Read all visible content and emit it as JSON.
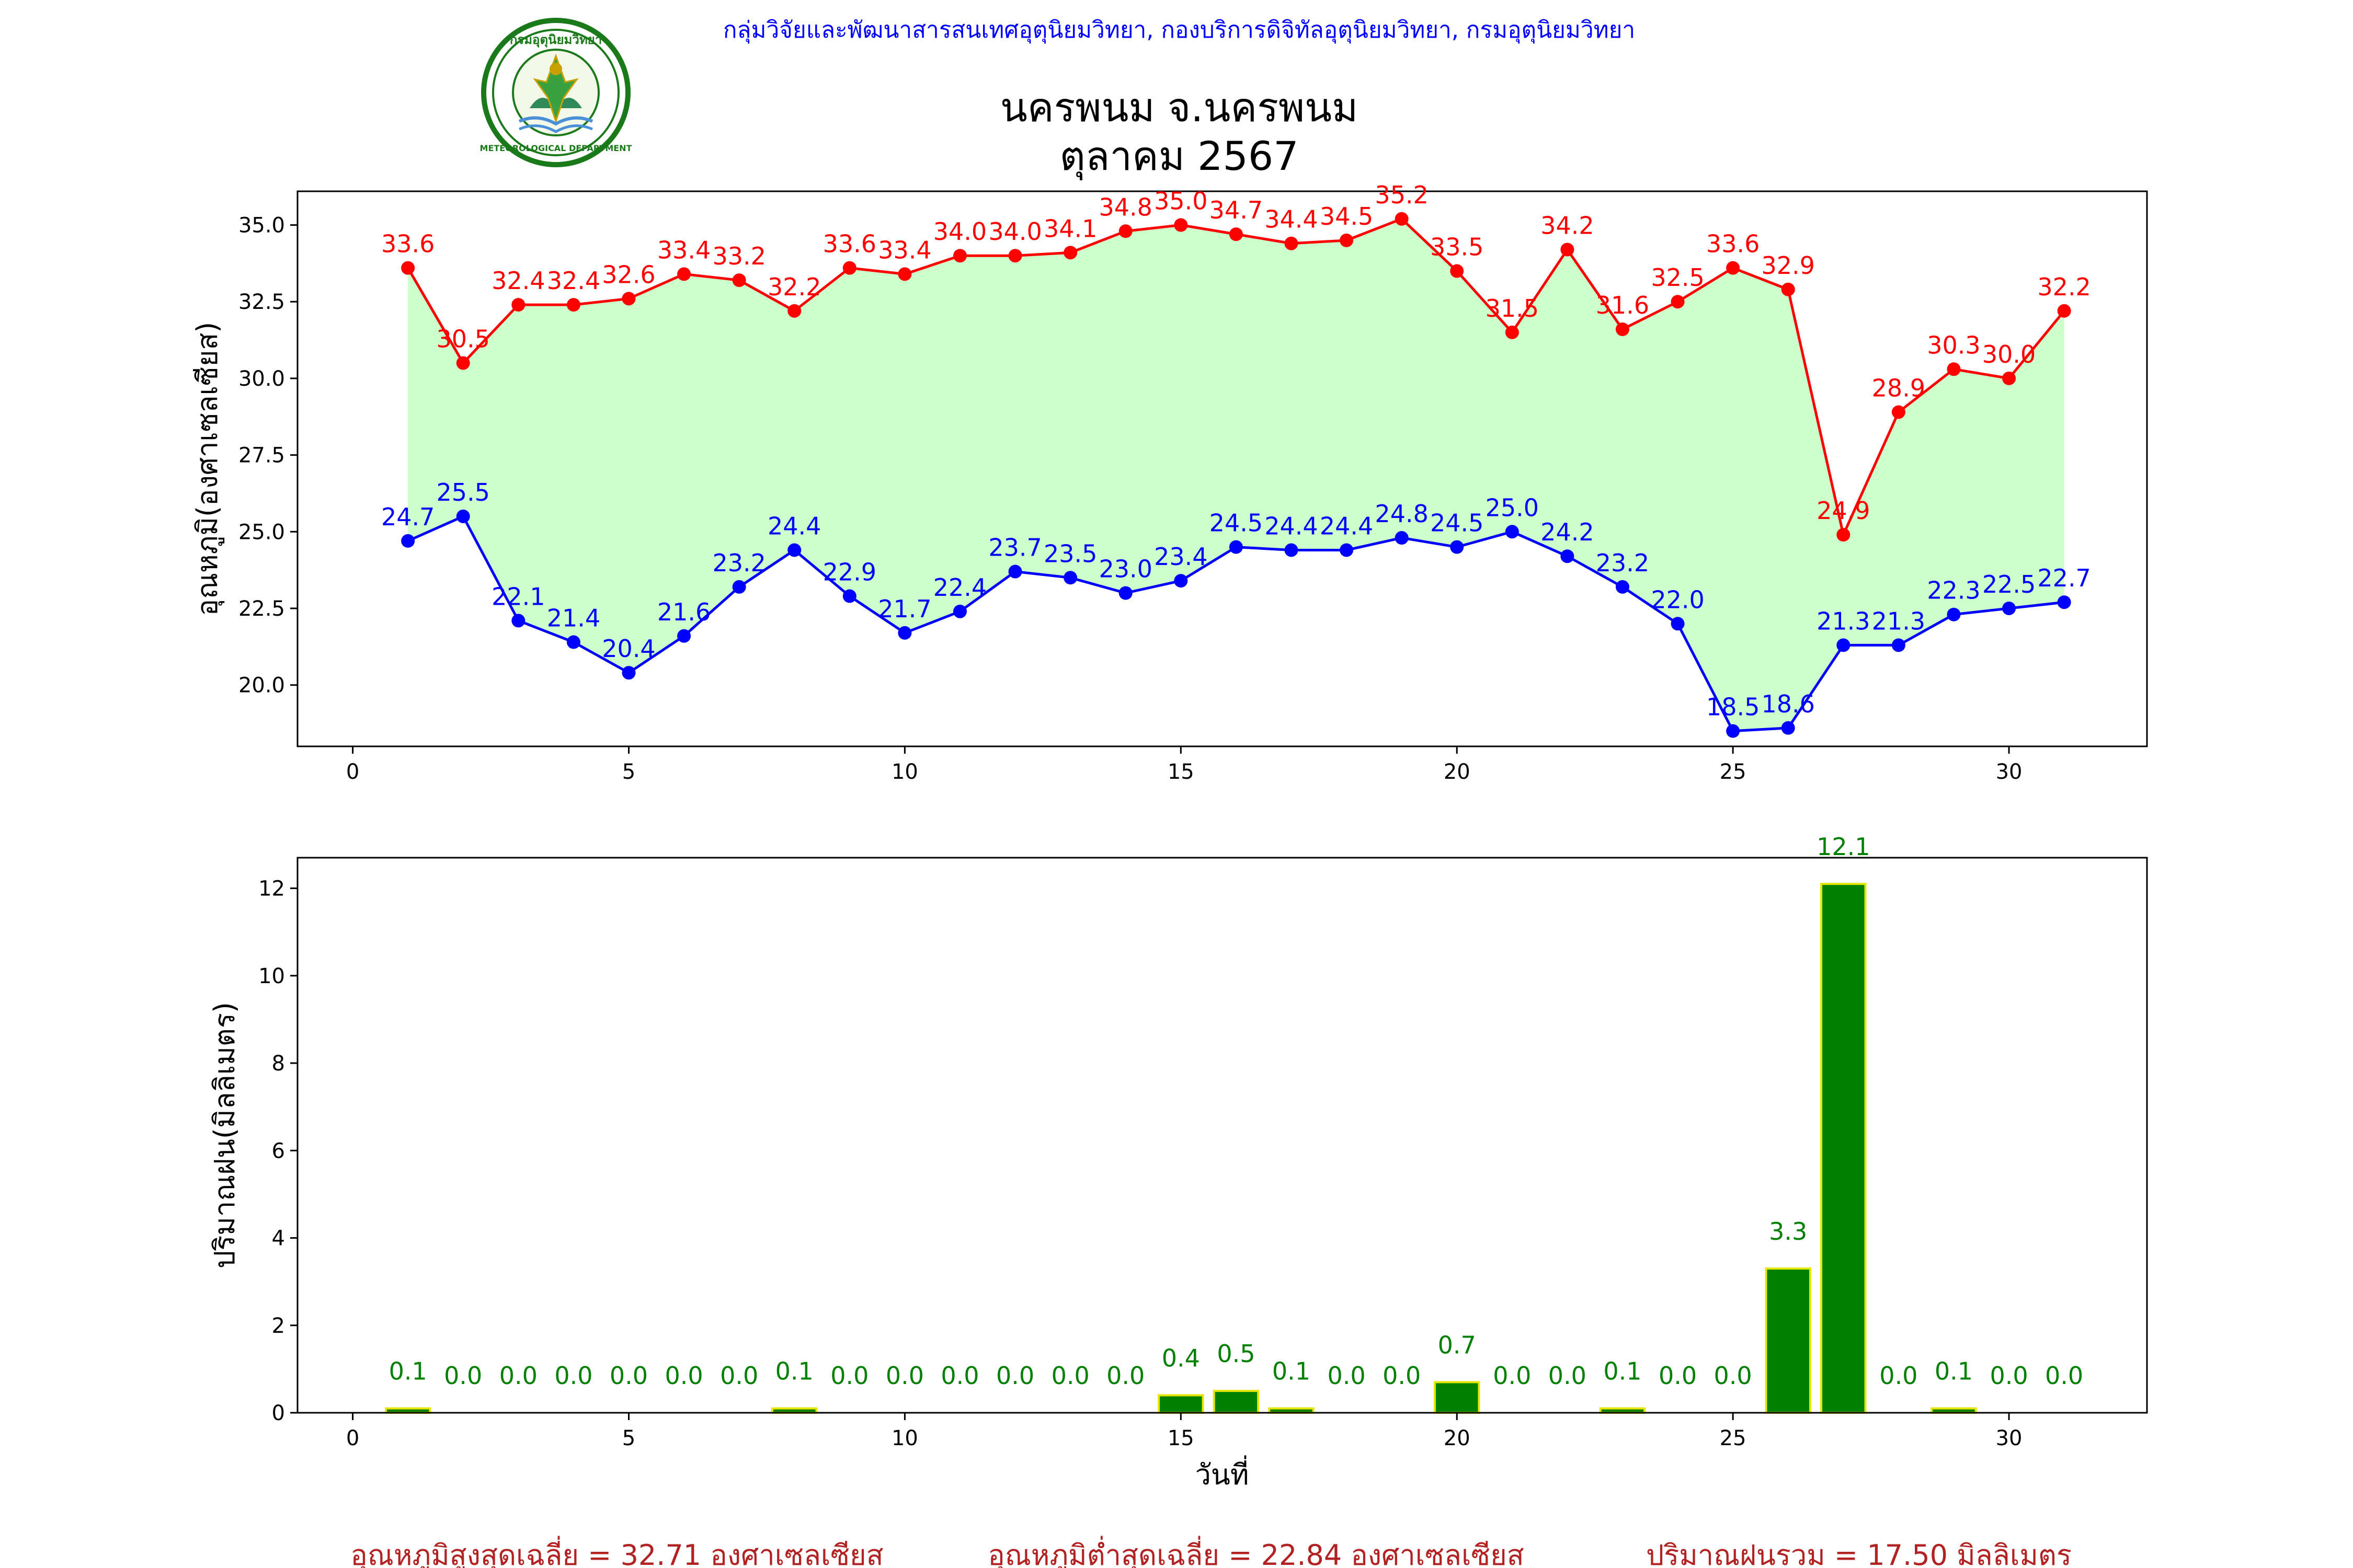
{
  "header": {
    "agency": "กลุ่มวิจัยและพัฒนาสารสนเทศอุตุนิยมวิทยา, กองบริการดิจิทัลอุตุนิยมวิทยา, กรมอุตุนิยมวิทยา",
    "station": "นครพนม จ.นครพนม",
    "period": "ตุลาคม 2567",
    "logo_text": "กรมอุตุนิยมวิทยา METEOROLOGICAL DEPARTMENT"
  },
  "chart_data": [
    {
      "type": "line",
      "ylabel": "อุณหภูมิ(องศาเซลเซียส)",
      "xlabel": "",
      "xlim": [
        -1,
        32.5
      ],
      "ylim": [
        18.0,
        36.1
      ],
      "xticks": [
        0,
        5,
        10,
        15,
        20,
        25,
        30
      ],
      "yticks": [
        20.0,
        22.5,
        25.0,
        27.5,
        30.0,
        32.5,
        35.0
      ],
      "x": [
        1,
        2,
        3,
        4,
        5,
        6,
        7,
        8,
        9,
        10,
        11,
        12,
        13,
        14,
        15,
        16,
        17,
        18,
        19,
        20,
        21,
        22,
        23,
        24,
        25,
        26,
        27,
        28,
        29,
        30,
        31
      ],
      "fill_between": "#ccffcc",
      "series": [
        {
          "color": "#ff0000",
          "values": [
            33.6,
            30.5,
            32.4,
            32.4,
            32.6,
            33.4,
            33.2,
            32.2,
            33.6,
            33.4,
            34.0,
            34.0,
            34.1,
            34.8,
            35.0,
            34.7,
            34.4,
            34.5,
            35.2,
            33.5,
            31.5,
            34.2,
            31.6,
            32.5,
            33.6,
            32.9,
            24.9,
            28.9,
            30.3,
            30.0,
            32.2
          ]
        },
        {
          "color": "#0000ff",
          "values": [
            24.7,
            25.5,
            22.1,
            21.4,
            20.4,
            21.6,
            23.2,
            24.4,
            22.9,
            21.7,
            22.4,
            23.7,
            23.5,
            23.0,
            23.4,
            24.5,
            24.4,
            24.4,
            24.8,
            24.5,
            25.0,
            24.2,
            23.2,
            22.0,
            18.5,
            18.6,
            21.3,
            21.3,
            22.3,
            22.5,
            22.7
          ]
        }
      ]
    },
    {
      "type": "bar",
      "ylabel": "ปริมาณฝน(มิลลิเมตร)",
      "xlabel": "วันที่",
      "xlim": [
        -1,
        32.5
      ],
      "ylim": [
        0,
        12.7
      ],
      "xticks": [
        0,
        5,
        10,
        15,
        20,
        25,
        30
      ],
      "yticks": [
        0,
        2,
        4,
        6,
        8,
        10,
        12
      ],
      "bar_color": "#008000",
      "edge_color": "#e6e600",
      "label_color": "#008000",
      "x": [
        1,
        2,
        3,
        4,
        5,
        6,
        7,
        8,
        9,
        10,
        11,
        12,
        13,
        14,
        15,
        16,
        17,
        18,
        19,
        20,
        21,
        22,
        23,
        24,
        25,
        26,
        27,
        28,
        29,
        30,
        31
      ],
      "values": [
        0.1,
        0.0,
        0.0,
        0.0,
        0.0,
        0.0,
        0.0,
        0.1,
        0.0,
        0.0,
        0.0,
        0.0,
        0.0,
        0.0,
        0.4,
        0.5,
        0.1,
        0.0,
        0.0,
        0.7,
        0.0,
        0.0,
        0.1,
        0.0,
        0.0,
        3.3,
        12.1,
        0.0,
        0.1,
        0.0,
        0.0
      ]
    }
  ],
  "summary": {
    "avg_max": "อุณหภูมิสูงสุดเฉลี่ย = 32.71 องศาเซลเซียส",
    "avg_min": "อุณหภูมิต่ำสุดเฉลี่ย = 22.84 องศาเซลเซียส",
    "total_rain": "ปริมาณฝนรวม = 17.50 มิลลิเมตร",
    "color": "#b22222"
  }
}
